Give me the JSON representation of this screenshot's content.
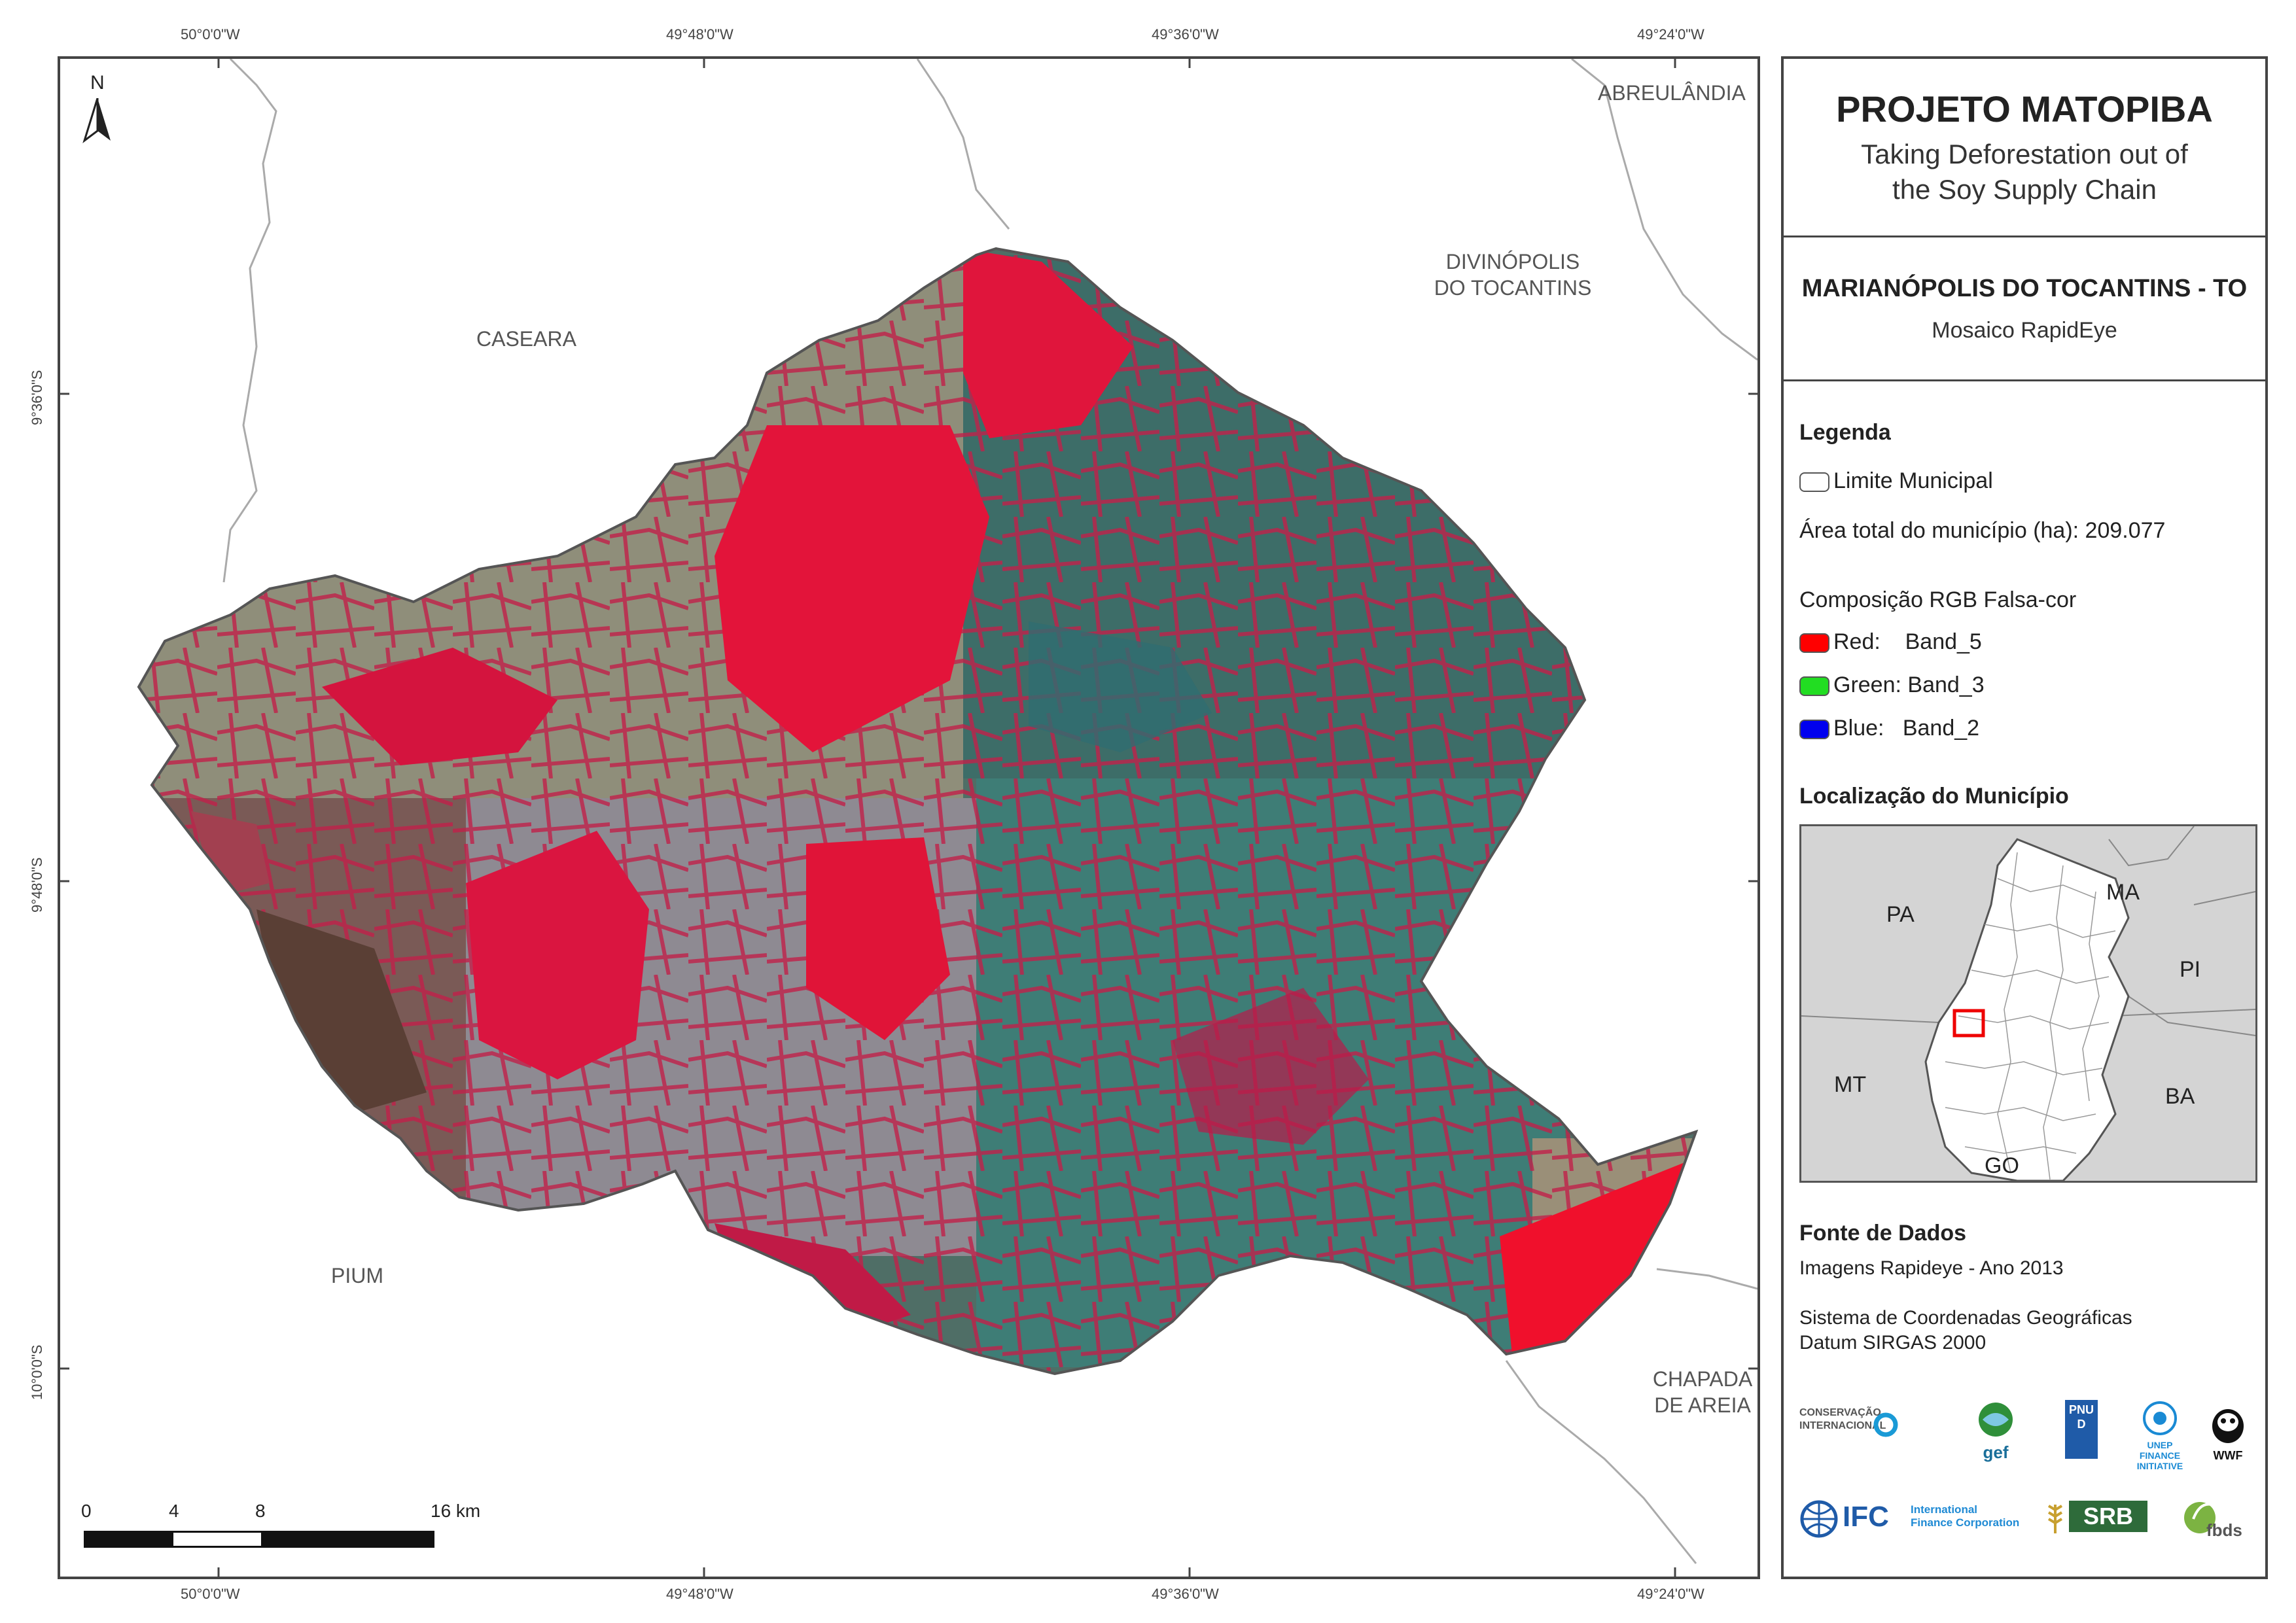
{
  "coords": {
    "top": [
      "50°0'0\"W",
      "49°48'0\"W",
      "49°36'0\"W",
      "49°24'0\"W"
    ],
    "bottom": [
      "50°0'0\"W",
      "49°48'0\"W",
      "49°36'0\"W",
      "49°24'0\"W"
    ],
    "left": [
      "9°36'0\"S",
      "9°48'0\"S",
      "10°0'0\"S"
    ]
  },
  "map": {
    "north_label": "N",
    "towns": {
      "caseara": "CASEARA",
      "abreulandia": "ABREULÂNDIA",
      "divinopolis_1": "DIVINÓPOLIS",
      "divinopolis_2": "DO TOCANTINS",
      "pium": "PIUM",
      "chapada_1": "CHAPADA",
      "chapada_2": "DE AREIA"
    },
    "scale_bar": {
      "labels": [
        "0",
        "4",
        "8",
        "16 km"
      ]
    }
  },
  "panel": {
    "title": "PROJETO MATOPIBA",
    "subtitle_1": "Taking Deforestation out of",
    "subtitle_2": "the Soy Supply Chain",
    "municipality": "MARIANÓPOLIS DO TOCANTINS - TO",
    "mosaic": "Mosaico RapidEye",
    "legend_title": "Legenda",
    "limite": "Limite Municipal",
    "area": "Área total do município (ha): 209.077",
    "composicao": "Composição RGB Falsa-cor",
    "bands": [
      {
        "label": "Red:    Band_5",
        "color": "#ff0000"
      },
      {
        "label": "Green: Band_3",
        "color": "#22dd22"
      },
      {
        "label": "Blue:   Band_2",
        "color": "#0000ee"
      }
    ],
    "loc_title": "Localização do Município",
    "inset_labels": {
      "pa": "PA",
      "ma": "MA",
      "pi": "PI",
      "mt": "MT",
      "ba": "BA",
      "go": "GO"
    },
    "fonte_title": "Fonte de Dados",
    "fonte_1": "Imagens Rapideye - Ano 2013",
    "fonte_2": "Sistema de Coordenadas Geográficas",
    "fonte_3": "Datum SIRGAS 2000",
    "logos": {
      "ci": "CONSERVAÇÃO INTERNACIONAL",
      "gef": "gef",
      "pnud": "PNUD",
      "unep": "UNEP FINANCE INITIATIVE",
      "wwf": "WWF",
      "ifc": "IFC",
      "ifc_text": "International Finance Corporation",
      "srb": "SRB",
      "fbds": "fbds"
    }
  }
}
